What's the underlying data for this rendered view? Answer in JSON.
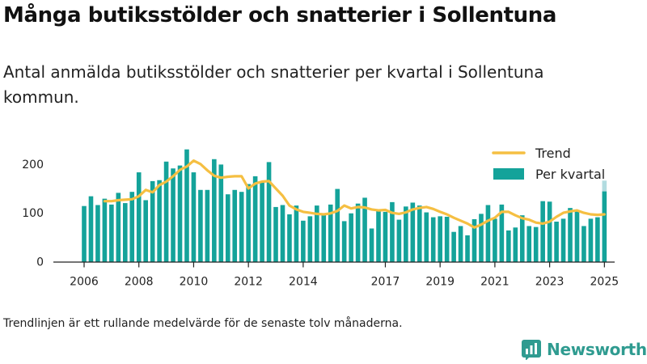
{
  "header": {
    "title": "Många butiksstölder och snatterier i Sollentuna",
    "subtitle": "Antal anmälda butiksstölder och snatterier per kvartal i Sollentuna kommun."
  },
  "footnote": "Trendlinjen är ett rullande medelvärde för de senaste tolv månaderna.",
  "brand": {
    "name": "Newsworthy",
    "icon": "newsworthy-logo-icon",
    "color": "#2f9b90"
  },
  "colors": {
    "bar": "#14a39a",
    "bar_partial": "#b2dce0",
    "trend": "#f5bf42",
    "axis": "#222222",
    "grid": "#dddddd"
  },
  "chart_data": {
    "type": "bar",
    "x_start": "2006 Q1",
    "x_ticks": [
      "2006",
      "2008",
      "2010",
      "2012",
      "2014",
      "2017",
      "2019",
      "2021",
      "2023",
      "2025"
    ],
    "y_ticks": [
      "0",
      "100",
      "200"
    ],
    "ylim": [
      0,
      235
    ],
    "grid": false,
    "legend_position": "top-right",
    "series": [
      {
        "name": "Per kvartal",
        "type": "bar",
        "values": [
          114,
          134,
          116,
          129,
          117,
          141,
          120,
          143,
          183,
          126,
          165,
          167,
          205,
          191,
          197,
          230,
          183,
          147,
          147,
          210,
          199,
          138,
          147,
          143,
          159,
          175,
          165,
          204,
          112,
          116,
          97,
          115,
          84,
          93,
          115,
          98,
          117,
          149,
          83,
          99,
          119,
          131,
          68,
          106,
          102,
          122,
          86,
          113,
          121,
          115,
          101,
          91,
          93,
          92,
          61,
          73,
          54,
          87,
          98,
          116,
          88,
          117,
          64,
          70,
          95,
          73,
          71,
          124,
          123,
          82,
          88,
          110,
          105,
          73,
          88,
          91,
          144
        ],
        "partial_last_total": 166
      },
      {
        "name": "Trend",
        "type": "line",
        "values": [
          null,
          null,
          null,
          124,
          124,
          126,
          127,
          128,
          134,
          147,
          142,
          157,
          164,
          175,
          188,
          195,
          207,
          200,
          187,
          176,
          172,
          174,
          175,
          175,
          150,
          160,
          164,
          165,
          150,
          135,
          115,
          107,
          102,
          100,
          98,
          97,
          99,
          104,
          115,
          109,
          112,
          111,
          107,
          105,
          106,
          100,
          98,
          101,
          107,
          110,
          112,
          108,
          102,
          97,
          90,
          84,
          78,
          70,
          76,
          84,
          90,
          102,
          102,
          95,
          89,
          86,
          80,
          78,
          82,
          92,
          100,
          103,
          105,
          100,
          97,
          96,
          97
        ]
      }
    ]
  }
}
